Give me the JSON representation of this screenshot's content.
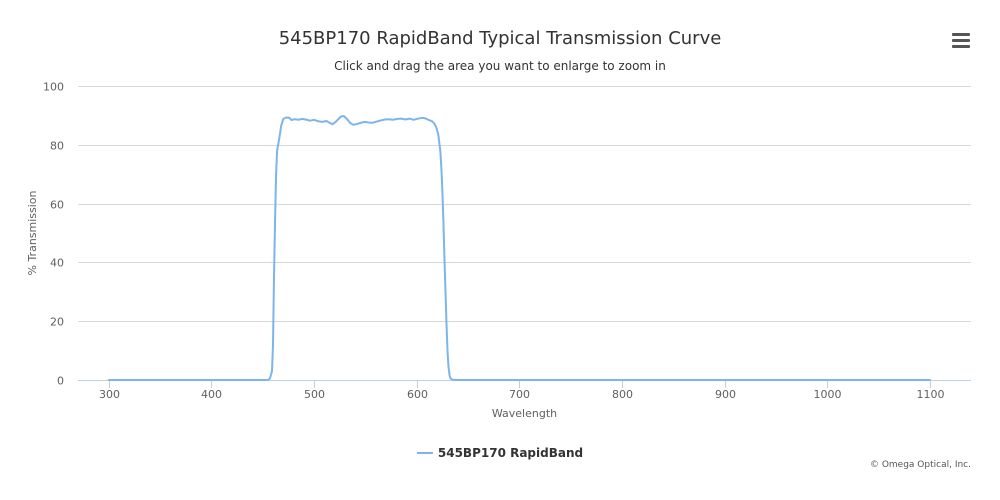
{
  "chart_data": {
    "type": "line",
    "title": "545BP170 RapidBand Typical Transmission Curve",
    "subtitle": "Click and drag the area you want to enlarge to zoom in",
    "xlabel": "Wavelength",
    "ylabel": "% Transmission",
    "xlim": [
      270,
      1140
    ],
    "ylim": [
      0,
      100
    ],
    "x_ticks": [
      300,
      400,
      500,
      600,
      700,
      800,
      900,
      1000,
      1100
    ],
    "y_ticks": [
      0,
      20,
      40,
      60,
      80,
      100
    ],
    "grid": true,
    "legend_position": "bottom-center",
    "series": [
      {
        "name": "545BP170 RapidBand",
        "color": "#7cb5ec",
        "points": [
          [
            300,
            0
          ],
          [
            455,
            0
          ],
          [
            457,
            0.5
          ],
          [
            459,
            3
          ],
          [
            460,
            12
          ],
          [
            461,
            35
          ],
          [
            462,
            55
          ],
          [
            463,
            70
          ],
          [
            464,
            78
          ],
          [
            466,
            82
          ],
          [
            468,
            86.5
          ],
          [
            470,
            88.8
          ],
          [
            473,
            89.3
          ],
          [
            476,
            89.2
          ],
          [
            478,
            88.4
          ],
          [
            481,
            88.7
          ],
          [
            485,
            88.5
          ],
          [
            488,
            88.8
          ],
          [
            492,
            88.6
          ],
          [
            496,
            88.2
          ],
          [
            500,
            88.5
          ],
          [
            504,
            88.0
          ],
          [
            508,
            87.8
          ],
          [
            512,
            88.1
          ],
          [
            515,
            87.5
          ],
          [
            518,
            87.0
          ],
          [
            521,
            87.8
          ],
          [
            523,
            88.5
          ],
          [
            526,
            89.6
          ],
          [
            529,
            89.8
          ],
          [
            532,
            88.8
          ],
          [
            535,
            87.5
          ],
          [
            538,
            86.8
          ],
          [
            541,
            87.0
          ],
          [
            545,
            87.4
          ],
          [
            549,
            87.8
          ],
          [
            553,
            87.6
          ],
          [
            557,
            87.5
          ],
          [
            561,
            87.9
          ],
          [
            565,
            88.3
          ],
          [
            569,
            88.6
          ],
          [
            573,
            88.7
          ],
          [
            577,
            88.5
          ],
          [
            581,
            88.8
          ],
          [
            585,
            88.9
          ],
          [
            589,
            88.6
          ],
          [
            593,
            88.9
          ],
          [
            597,
            88.5
          ],
          [
            600,
            88.8
          ],
          [
            603,
            89.0
          ],
          [
            606,
            89.2
          ],
          [
            609,
            88.9
          ],
          [
            612,
            88.4
          ],
          [
            615,
            88.0
          ],
          [
            617,
            87.3
          ],
          [
            619,
            86.0
          ],
          [
            621,
            83.5
          ],
          [
            623,
            78
          ],
          [
            624,
            72
          ],
          [
            625,
            64
          ],
          [
            626,
            54
          ],
          [
            627,
            42
          ],
          [
            628,
            30
          ],
          [
            629,
            19
          ],
          [
            630,
            10
          ],
          [
            631,
            4.5
          ],
          [
            632,
            1.5
          ],
          [
            633,
            0.5
          ],
          [
            635,
            0.1
          ],
          [
            640,
            0
          ],
          [
            1100,
            0
          ]
        ]
      }
    ],
    "credits": "© Omega Optical, Inc."
  }
}
